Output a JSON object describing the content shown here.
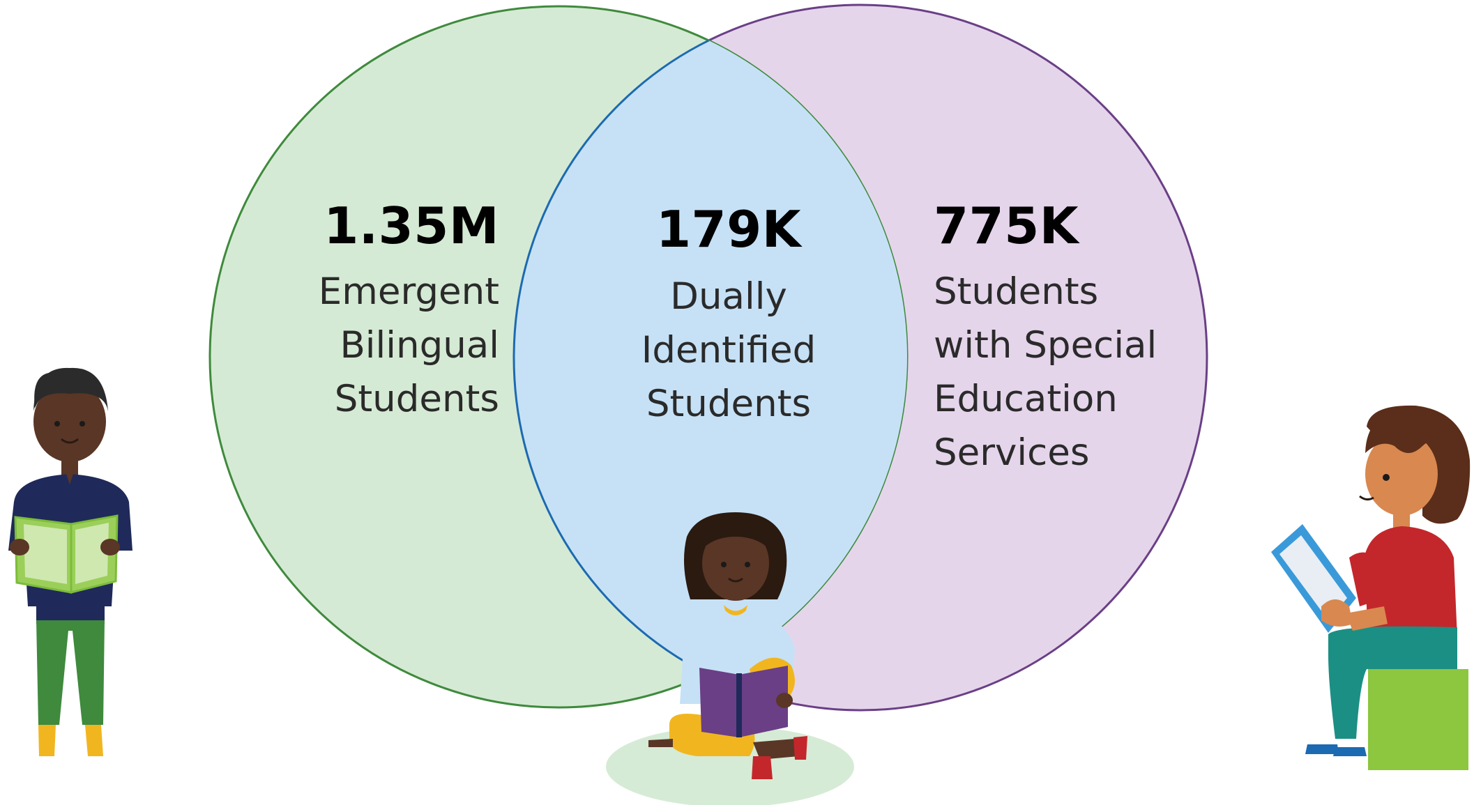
{
  "colors": {
    "left_fill": "#d5ead4",
    "left_stroke": "#3f8a3d",
    "right_fill": "#e5d5eb",
    "right_stroke": "#6a3f86",
    "overlap_fill": "#c6e1f6",
    "overlap_stroke": "#1c6ab1"
  },
  "venn": {
    "left": {
      "value": "1.35M",
      "line1": "Emergent",
      "line2": "Bilingual",
      "line3": "Students"
    },
    "overlap": {
      "value": "179K",
      "line1": "Dually",
      "line2": "Identified",
      "line3": "Students"
    },
    "right": {
      "value": "775K",
      "line1": "Students",
      "line2": "with Special",
      "line3": "Education",
      "line4": "Services"
    }
  },
  "illustrations": [
    "boy-reading-book",
    "girl-sitting-reading-book",
    "girl-reading-tablet-on-block"
  ]
}
